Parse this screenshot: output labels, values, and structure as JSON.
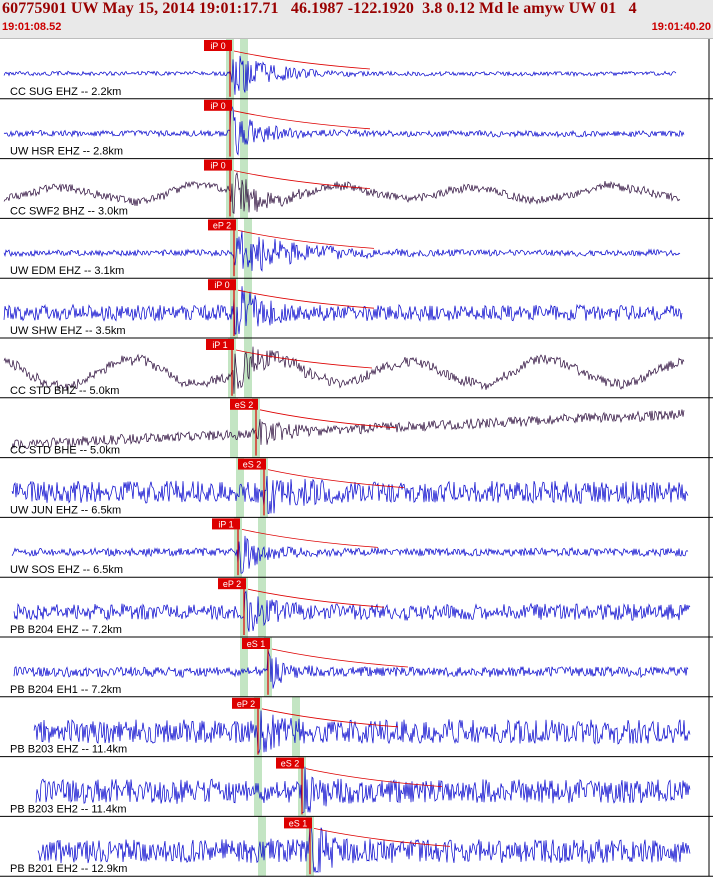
{
  "header": {
    "title": "60775901 UW May 15, 2014 19:01:17.71   46.1987 -122.1920  3.8 0.12 Md le amyw UW 01   4",
    "start_time": "19:01:08.52",
    "end_time": "19:01:40.20"
  },
  "colors": {
    "header_bg": "#e9e9e9",
    "title": "#990000",
    "timestamp": "#cc0000",
    "trace_blue": "#0000cc",
    "trace_dark": "#2a0a3a",
    "pick": "#dd0000",
    "window": "#b8e0b8",
    "separator": "#000000"
  },
  "traces": [
    {
      "label": "CC SUG EHZ -- 2.2km",
      "pick": "iP 0",
      "color": "blue"
    },
    {
      "label": "UW HSR EHZ -- 2.8km",
      "pick": "iP 0",
      "color": "blue"
    },
    {
      "label": "CC SWF2 BHZ -- 3.0km",
      "pick": "iP 0",
      "color": "dark"
    },
    {
      "label": "UW EDM EHZ -- 3.1km",
      "pick": "eP 2",
      "color": "blue"
    },
    {
      "label": "UW SHW EHZ -- 3.5km",
      "pick": "iP 0",
      "color": "blue"
    },
    {
      "label": "CC STD BHZ -- 5.0km",
      "pick": "iP 1",
      "color": "dark"
    },
    {
      "label": "CC STD BHE -- 5.0km",
      "pick": "eS 2",
      "color": "dark"
    },
    {
      "label": "UW JUN EHZ -- 6.5km",
      "pick": "eS 2",
      "color": "blue"
    },
    {
      "label": "UW SOS EHZ -- 6.5km",
      "pick": "iP 1",
      "color": "blue"
    },
    {
      "label": "PB B204 EHZ -- 7.2km",
      "pick": "eP 2",
      "color": "blue"
    },
    {
      "label": "PB B204 EH1 -- 7.2km",
      "pick": "eS 1",
      "color": "blue"
    },
    {
      "label": "PB B203 EHZ -- 11.4km",
      "pick": "eP 2",
      "color": "blue"
    },
    {
      "label": "PB B203 EH2 -- 11.4km",
      "pick": "eS 2",
      "color": "blue"
    },
    {
      "label": "PB B201 EH2 -- 12.9km",
      "pick": "eS 1",
      "color": "blue"
    }
  ]
}
